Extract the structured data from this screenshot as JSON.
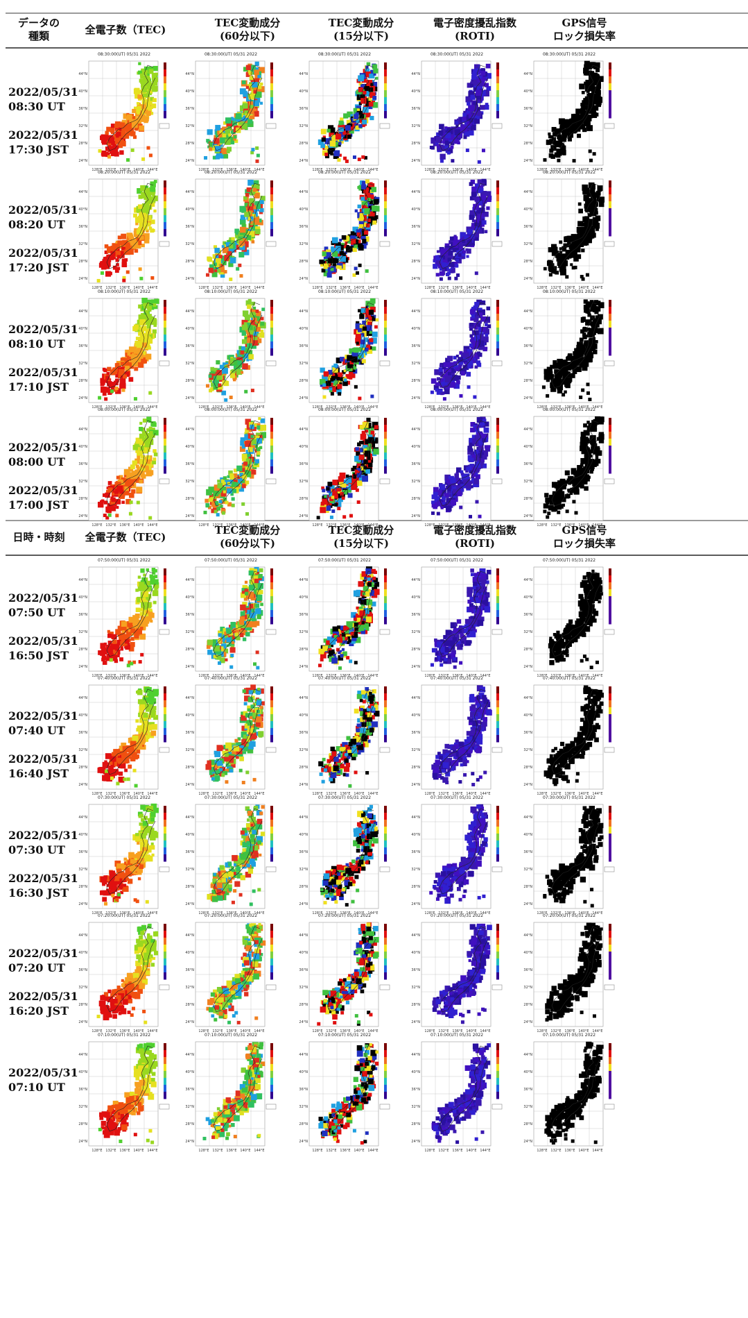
{
  "header1": {
    "cols": [
      "データの\n種類",
      "全電子数（TEC)",
      "TEC変動成分\n(60分以下)",
      "TEC変動成分\n(15分以下)",
      "電子密度擾乱指数\n(ROTI)",
      "GPS信号\nロック損失率"
    ]
  },
  "header2": {
    "cols": [
      "日時・時刻",
      "全電子数（TEC)",
      "TEC変動成分\n(60分以下)",
      "TEC変動成分\n(15分以下)",
      "電子密度擾乱指数\n(ROTI)",
      "GPS信号\nロック損失率"
    ]
  },
  "map_text": {
    "lat_ticks": [
      "44°N",
      "40°N",
      "36°N",
      "32°N",
      "28°N",
      "24°N"
    ],
    "lon_ticks": [
      "128°E",
      "132°E",
      "136°E",
      "140°E",
      "144°E"
    ]
  },
  "rows": [
    {
      "ut": "2022/05/31\n08:30 UT",
      "jst": "2022/05/31\n17:30 JST",
      "stamp": "08:30:00(UT) 05/31 2022"
    },
    {
      "ut": "2022/05/31\n08:20 UT",
      "jst": "2022/05/31\n17:20 JST",
      "stamp": "08:20:00(UT) 05/31 2022"
    },
    {
      "ut": "2022/05/31\n08:10 UT",
      "jst": "2022/05/31\n17:10 JST",
      "stamp": "08:10:00(UT) 05/31 2022"
    },
    {
      "ut": "2022/05/31\n08:00 UT",
      "jst": "2022/05/31\n17:00 JST",
      "stamp": "08:00:00(UT) 05/31 2022"
    },
    {
      "ut": "2022/05/31\n07:50 UT",
      "jst": "2022/05/31\n16:50 JST",
      "stamp": "07:50:00(UT) 05/31 2022"
    },
    {
      "ut": "2022/05/31\n07:40 UT",
      "jst": "2022/05/31\n16:40 JST",
      "stamp": "07:40:00(UT) 05/31 2022"
    },
    {
      "ut": "2022/05/31\n07:30 UT",
      "jst": "2022/05/31\n16:30 JST",
      "stamp": "07:30:00(UT) 05/31 2022"
    },
    {
      "ut": "2022/05/31\n07:20 UT",
      "jst": "2022/05/31\n16:20 JST",
      "stamp": "07:20:00(UT) 05/31 2022"
    },
    {
      "ut": "2022/05/31\n07:10 UT",
      "jst": "",
      "stamp": "07:10:00(UT) 05/31 2022"
    }
  ],
  "map_kinds": [
    "tec",
    "dtec60",
    "dtec15",
    "roti",
    "lol"
  ],
  "colors": {
    "tec": [
      "#e01010",
      "#f05010",
      "#f7a020",
      "#e6e020",
      "#9ad820",
      "#50d030"
    ],
    "dtec60": [
      "#40c040",
      "#80d030",
      "#30c060",
      "#e03020",
      "#f08020",
      "#20a0e0",
      "#e0e020"
    ],
    "dtec15": [
      "#000000",
      "#000000",
      "#e01010",
      "#e01010",
      "#20a0e0",
      "#f0e020",
      "#40c040",
      "#2030c0"
    ],
    "roti": [
      "#3a18b0",
      "#4010c0",
      "#2a10a0",
      "#3020d0"
    ],
    "lol": [
      "#000000"
    ],
    "grid": "#bdbdbd",
    "coast": "#222222",
    "colorbar": [
      "#7a0000",
      "#e01010",
      "#f07020",
      "#f0e020",
      "#80d040",
      "#20c0c0",
      "#2060e0",
      "#300090"
    ]
  }
}
